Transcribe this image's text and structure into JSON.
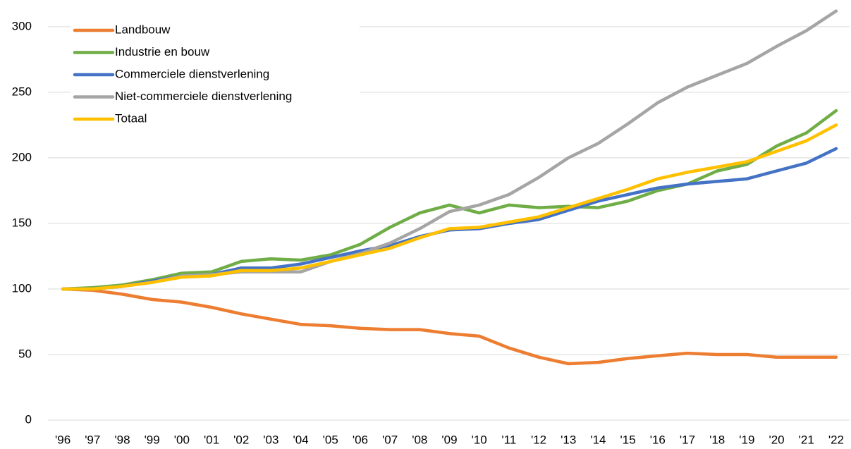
{
  "chart_data": {
    "type": "line",
    "categories": [
      "'96",
      "'97",
      "'98",
      "'99",
      "'00",
      "'01",
      "'02",
      "'03",
      "'04",
      "'05",
      "'06",
      "'07",
      "'08",
      "'09",
      "'10",
      "'11",
      "'12",
      "'13",
      "'14",
      "'15",
      "'16",
      "'17",
      "'18",
      "'19",
      "'20",
      "'21",
      "'22"
    ],
    "series": [
      {
        "name": "Landbouw",
        "color": "#ED7D31",
        "values": [
          100,
          99,
          96,
          92,
          90,
          86,
          81,
          77,
          73,
          72,
          70,
          69,
          69,
          66,
          64,
          55,
          48,
          43,
          44,
          47,
          49,
          51,
          50,
          50,
          48,
          48,
          48
        ]
      },
      {
        "name": "Industrie en bouw",
        "color": "#70AD47",
        "values": [
          100,
          101,
          103,
          107,
          112,
          113,
          121,
          123,
          122,
          126,
          134,
          147,
          158,
          164,
          158,
          164,
          162,
          163,
          162,
          167,
          175,
          180,
          190,
          195,
          209,
          219,
          236
        ]
      },
      {
        "name": "Commerciele dienstverlening",
        "color": "#4472C4",
        "values": [
          100,
          100,
          102,
          106,
          110,
          111,
          116,
          116,
          119,
          124,
          129,
          133,
          140,
          145,
          146,
          150,
          153,
          160,
          167,
          172,
          177,
          180,
          182,
          184,
          190,
          196,
          207
        ]
      },
      {
        "name": "Niet-commerciele dienstverlening",
        "color": "#A5A5A5",
        "values": [
          100,
          100,
          102,
          105,
          110,
          111,
          113,
          113,
          113,
          121,
          127,
          135,
          146,
          159,
          164,
          172,
          185,
          200,
          211,
          226,
          242,
          254,
          263,
          272,
          285,
          297,
          312
        ]
      },
      {
        "name": "Totaal",
        "color": "#FFC000",
        "values": [
          100,
          100,
          102,
          105,
          109,
          110,
          114,
          114,
          116,
          121,
          126,
          131,
          139,
          146,
          147,
          151,
          155,
          162,
          169,
          176,
          184,
          189,
          193,
          197,
          205,
          213,
          225
        ]
      }
    ],
    "ylim": [
      0,
      315
    ],
    "yticks": [
      0,
      50,
      100,
      150,
      200,
      250,
      300
    ],
    "grid": true,
    "legend": "upper-left"
  }
}
